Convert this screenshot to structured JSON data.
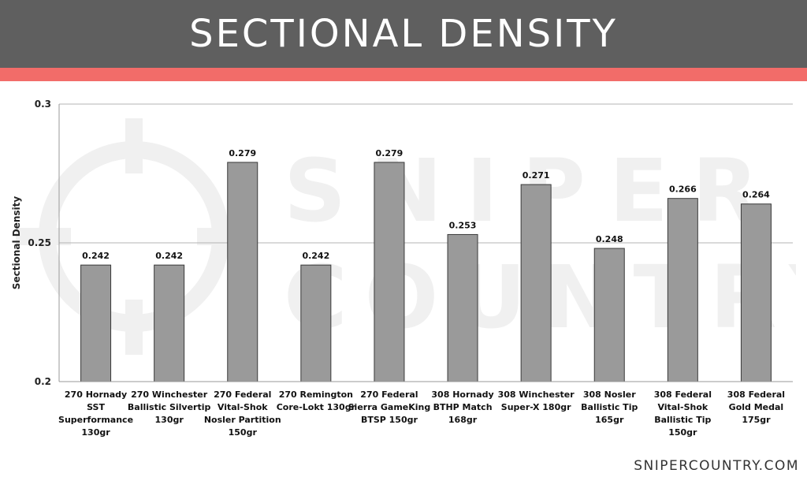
{
  "header": {
    "title": "SECTIONAL DENSITY"
  },
  "colors": {
    "header_bg": "#5f5f5f",
    "accent": "#f26c69",
    "bar_fill": "#9a9a9a",
    "bar_stroke": "#3a3a3a"
  },
  "watermark": {
    "line1": "SNIPER",
    "line2": "COUNTRY",
    "icon": "crosshair-icon"
  },
  "footer": {
    "brand": "SNIPERCOUNTRY.COM"
  },
  "chart_data": {
    "type": "bar",
    "ylabel": "Sectional Density",
    "ylim": [
      0.2,
      0.3
    ],
    "yticks": [
      0.2,
      0.25,
      0.3
    ],
    "ytick_labels": [
      "0.2",
      "0.25",
      "0.3"
    ],
    "grid": true,
    "categories": [
      [
        "270 Hornady",
        "SST",
        "Superformance",
        "130gr"
      ],
      [
        "270 Winchester",
        "Ballistic Silvertip",
        "130gr"
      ],
      [
        "270 Federal",
        "Vital-Shok",
        "Nosler Partition",
        "150gr"
      ],
      [
        "270 Remington",
        "Core-Lokt 130gr"
      ],
      [
        "270 Federal",
        "Sierra GameKing",
        "BTSP 150gr"
      ],
      [
        "308 Hornady",
        "BTHP Match",
        "168gr"
      ],
      [
        "308 Winchester",
        "Super-X 180gr"
      ],
      [
        "308 Nosler",
        "Ballistic Tip",
        "165gr"
      ],
      [
        "308 Federal",
        "Vital-Shok",
        "Ballistic Tip",
        "150gr"
      ],
      [
        "308 Federal",
        "Gold Medal",
        "175gr"
      ]
    ],
    "values": [
      0.242,
      0.242,
      0.279,
      0.242,
      0.279,
      0.253,
      0.271,
      0.248,
      0.266,
      0.264
    ],
    "value_labels": [
      "0.242",
      "0.242",
      "0.279",
      "0.242",
      "0.279",
      "0.253",
      "0.271",
      "0.248",
      "0.266",
      "0.264"
    ]
  }
}
